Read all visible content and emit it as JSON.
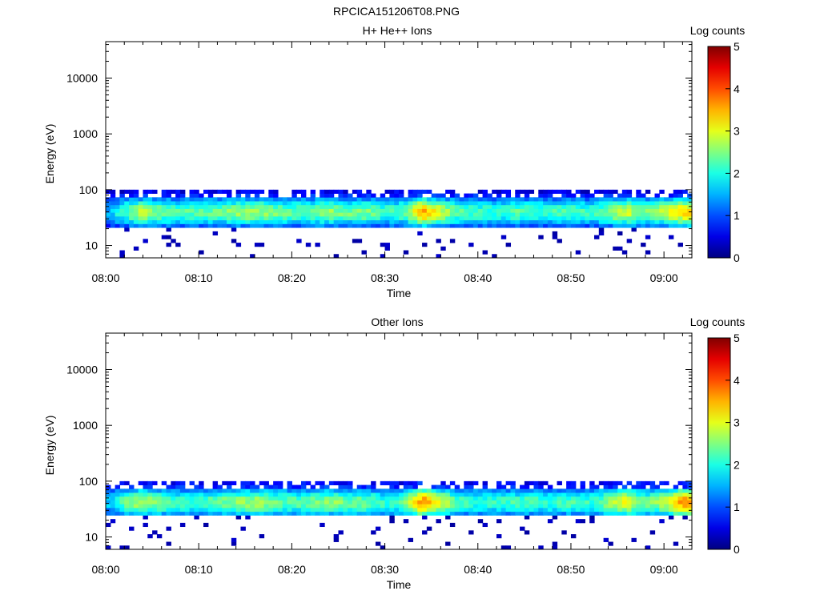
{
  "page_title": "RPCICA151206T08.PNG",
  "chart_data": [
    {
      "type": "heatmap",
      "title": "H+ He++ Ions",
      "xlabel": "Time",
      "ylabel": "Energy (eV)",
      "x_ticks": [
        "08:00",
        "08:10",
        "08:20",
        "08:30",
        "08:40",
        "08:50",
        "09:00"
      ],
      "x_range": [
        "08:00",
        "09:03"
      ],
      "y_scale": "log",
      "y_range": [
        6,
        45000
      ],
      "y_ticks": [
        10,
        100,
        1000,
        10000
      ],
      "y_tick_labels": [
        "10",
        "100",
        "1000",
        "10000"
      ],
      "colorbar": {
        "label": "Log counts",
        "range": [
          0,
          5
        ],
        "ticks": [
          "0",
          "1",
          "2",
          "3",
          "4",
          "5"
        ],
        "colormap": "jet"
      },
      "population_energy_range_eV": [
        22,
        95
      ],
      "peak_energy_eV": 40,
      "peak_log_counts": [
        {
          "time": "08:00",
          "value": 1.4
        },
        {
          "time": "08:02",
          "value": 2.2
        },
        {
          "time": "08:04",
          "value": 2.8
        },
        {
          "time": "08:06",
          "value": 2.4
        },
        {
          "time": "08:08",
          "value": 2.3
        },
        {
          "time": "08:10",
          "value": 2.3
        },
        {
          "time": "08:12",
          "value": 2.4
        },
        {
          "time": "08:14",
          "value": 2.6
        },
        {
          "time": "08:16",
          "value": 2.7
        },
        {
          "time": "08:18",
          "value": 2.5
        },
        {
          "time": "08:20",
          "value": 2.3
        },
        {
          "time": "08:22",
          "value": 2.4
        },
        {
          "time": "08:24",
          "value": 2.6
        },
        {
          "time": "08:26",
          "value": 2.4
        },
        {
          "time": "08:28",
          "value": 2.5
        },
        {
          "time": "08:30",
          "value": 2.2
        },
        {
          "time": "08:32",
          "value": 2.3
        },
        {
          "time": "08:34",
          "value": 3.6
        },
        {
          "time": "08:36",
          "value": 2.9
        },
        {
          "time": "08:38",
          "value": 2.3
        },
        {
          "time": "08:40",
          "value": 2.2
        },
        {
          "time": "08:42",
          "value": 2.1
        },
        {
          "time": "08:44",
          "value": 2.3
        },
        {
          "time": "08:46",
          "value": 2.2
        },
        {
          "time": "08:48",
          "value": 2.2
        },
        {
          "time": "08:50",
          "value": 2.3
        },
        {
          "time": "08:52",
          "value": 2.1
        },
        {
          "time": "08:54",
          "value": 2.5
        },
        {
          "time": "08:56",
          "value": 2.9
        },
        {
          "time": "08:58",
          "value": 2.4
        },
        {
          "time": "09:00",
          "value": 2.8
        },
        {
          "time": "09:02",
          "value": 3.3
        }
      ]
    },
    {
      "type": "heatmap",
      "title": "Other Ions",
      "xlabel": "Time",
      "ylabel": "Energy (eV)",
      "x_ticks": [
        "08:00",
        "08:10",
        "08:20",
        "08:30",
        "08:40",
        "08:50",
        "09:00"
      ],
      "x_range": [
        "08:00",
        "09:03"
      ],
      "y_scale": "log",
      "y_range": [
        6,
        45000
      ],
      "y_ticks": [
        10,
        100,
        1000,
        10000
      ],
      "y_tick_labels": [
        "10",
        "100",
        "1000",
        "10000"
      ],
      "colorbar": {
        "label": "Log counts",
        "range": [
          0,
          5
        ],
        "ticks": [
          "0",
          "1",
          "2",
          "3",
          "4",
          "5"
        ],
        "colormap": "jet"
      },
      "population_energy_range_eV": [
        24,
        95
      ],
      "peak_energy_eV": 42,
      "peak_log_counts": [
        {
          "time": "08:00",
          "value": 1.5
        },
        {
          "time": "08:02",
          "value": 2.3
        },
        {
          "time": "08:04",
          "value": 2.8
        },
        {
          "time": "08:06",
          "value": 2.4
        },
        {
          "time": "08:08",
          "value": 2.2
        },
        {
          "time": "08:10",
          "value": 2.2
        },
        {
          "time": "08:12",
          "value": 2.4
        },
        {
          "time": "08:14",
          "value": 2.5
        },
        {
          "time": "08:16",
          "value": 2.7
        },
        {
          "time": "08:18",
          "value": 2.4
        },
        {
          "time": "08:20",
          "value": 2.3
        },
        {
          "time": "08:22",
          "value": 2.4
        },
        {
          "time": "08:24",
          "value": 2.6
        },
        {
          "time": "08:26",
          "value": 2.4
        },
        {
          "time": "08:28",
          "value": 2.4
        },
        {
          "time": "08:30",
          "value": 2.1
        },
        {
          "time": "08:32",
          "value": 2.3
        },
        {
          "time": "08:34",
          "value": 3.8
        },
        {
          "time": "08:36",
          "value": 3.0
        },
        {
          "time": "08:38",
          "value": 2.2
        },
        {
          "time": "08:40",
          "value": 2.1
        },
        {
          "time": "08:42",
          "value": 2.1
        },
        {
          "time": "08:44",
          "value": 2.2
        },
        {
          "time": "08:46",
          "value": 2.2
        },
        {
          "time": "08:48",
          "value": 2.1
        },
        {
          "time": "08:50",
          "value": 2.2
        },
        {
          "time": "08:52",
          "value": 2.1
        },
        {
          "time": "08:54",
          "value": 2.5
        },
        {
          "time": "08:56",
          "value": 3.1
        },
        {
          "time": "08:58",
          "value": 2.3
        },
        {
          "time": "09:00",
          "value": 2.8
        },
        {
          "time": "09:02",
          "value": 3.6
        }
      ]
    }
  ]
}
